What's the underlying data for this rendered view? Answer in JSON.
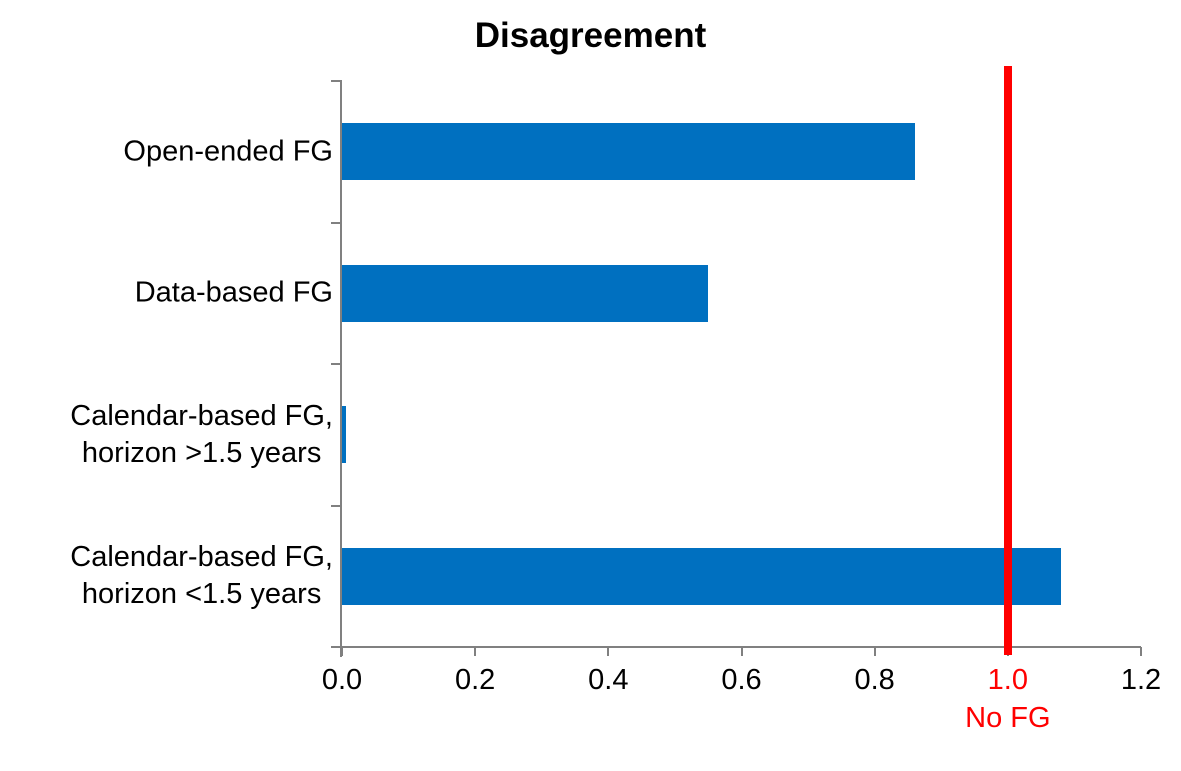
{
  "chart_data": {
    "type": "bar",
    "orientation": "horizontal",
    "title": "Disagreement",
    "categories": [
      [
        "Open-ended FG"
      ],
      [
        "Data-based FG"
      ],
      [
        "Calendar-based FG,",
        "horizon >1.5 years"
      ],
      [
        "Calendar-based FG,",
        "horizon <1.5 years"
      ]
    ],
    "values": [
      0.86,
      0.55,
      0.006,
      1.08
    ],
    "xlabel": "",
    "ylabel": "",
    "xlim": [
      0.0,
      1.2
    ],
    "x_ticks": [
      0.0,
      0.2,
      0.4,
      0.6,
      0.8,
      1.0,
      1.2
    ],
    "x_tick_labels": [
      "0.0",
      "0.2",
      "0.4",
      "0.6",
      "0.8",
      "1.0",
      "1.2"
    ],
    "grid": false,
    "legend": null,
    "reference_line": {
      "value": 1.0,
      "tick_label": "1.0",
      "label": "No FG",
      "color": "#FF0000"
    },
    "colors": {
      "bar": "#0070C0",
      "reference": "#FF0000",
      "axis": "#808080",
      "text": "#000000"
    }
  }
}
